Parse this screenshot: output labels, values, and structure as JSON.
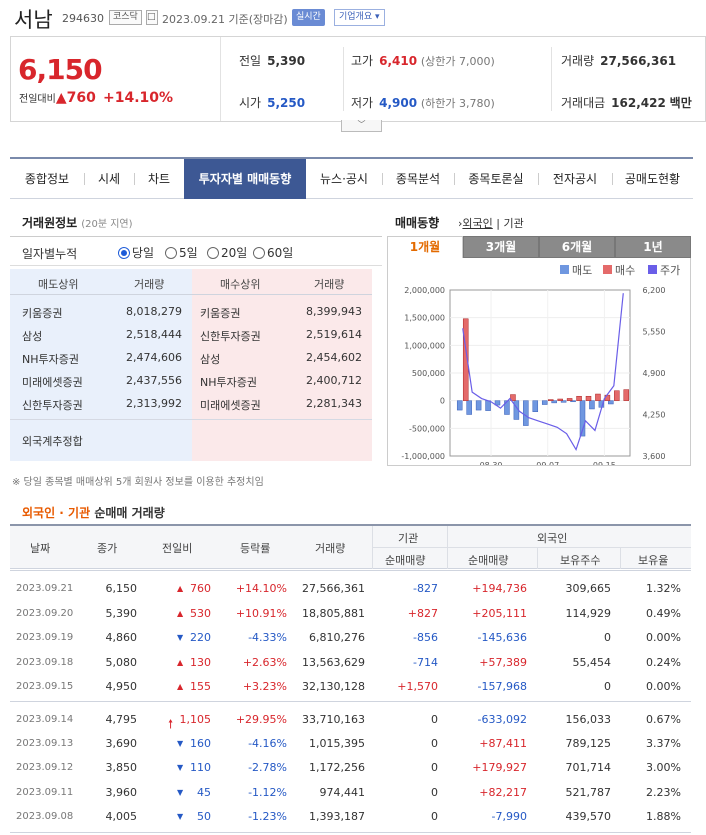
{
  "header": {
    "name": "서남",
    "code": "294630",
    "market": "코스닥",
    "date_text": "2023.09.21 기준(장마감)",
    "live_label": "실시간",
    "info_label": "기업개요"
  },
  "price": {
    "current": "6,150",
    "change_label": "전일대비",
    "change": "760",
    "change_pct": "+14.10%",
    "prev_label": "전일",
    "prev": "5,390",
    "open_label": "시가",
    "open": "5,250",
    "high_label": "고가",
    "high": "6,410",
    "upper_limit": "(상한가 7,000)",
    "low_label": "저가",
    "low": "4,900",
    "lower_limit": "(하한가 3,780)",
    "volume_label": "거래량",
    "volume": "27,566,361",
    "amount_label": "거래대금",
    "amount": "162,422",
    "amount_unit": "백만"
  },
  "tabs": [
    "종합정보",
    "시세",
    "차트",
    "투자자별 매매동향",
    "뉴스·공시",
    "종목분석",
    "종목토론실",
    "전자공시",
    "공매도현황"
  ],
  "trader": {
    "title": "거래원정보",
    "subtitle": "(20분 지연)",
    "period_label": "일자별누적",
    "periods": [
      "당일",
      "5일",
      "20일",
      "60일"
    ],
    "head": {
      "sell": "매도상위",
      "sell_vol": "거래량",
      "buy": "매수상위",
      "buy_vol": "거래량"
    },
    "rows": [
      {
        "sell": "키움증권",
        "sell_vol": "8,018,279",
        "buy": "키움증권",
        "buy_vol": "8,399,943"
      },
      {
        "sell": "삼성",
        "sell_vol": "2,518,444",
        "buy": "신한투자증권",
        "buy_vol": "2,519,614"
      },
      {
        "sell": "NH투자증권",
        "sell_vol": "2,474,606",
        "buy": "삼성",
        "buy_vol": "2,454,602"
      },
      {
        "sell": "미래에셋증권",
        "sell_vol": "2,437,556",
        "buy": "NH투자증권",
        "buy_vol": "2,400,712"
      },
      {
        "sell": "신한투자증권",
        "sell_vol": "2,313,992",
        "buy": "미래에셋증권",
        "buy_vol": "2,281,343"
      }
    ],
    "foreign_label": "외국계추정합",
    "note": "※ 당일 종목별 매매상위 5개 회원사 정보를 이용한 추정치임"
  },
  "trend": {
    "title": "매매동향",
    "link_foreign": "외국인",
    "link_inst": "기관",
    "periods": [
      "1개월",
      "3개월",
      "6개월",
      "1년"
    ]
  },
  "chart_data": {
    "type": "bar",
    "legend": [
      "매도",
      "매수",
      "주가"
    ],
    "legend_position": "top-right",
    "x_ticks": [
      "08.30",
      "09.07",
      "09.15"
    ],
    "y_left_ticks": [
      "2,000,000",
      "1,500,000",
      "1,000,000",
      "500,000",
      "0",
      "-500,000",
      "-1,000,000"
    ],
    "y_left_range": [
      -1000000,
      2000000
    ],
    "y_right_ticks": [
      "6,200",
      "5,550",
      "4,900",
      "4,250",
      "3,600"
    ],
    "y_right_range": [
      3600,
      6200
    ],
    "series": [
      {
        "name": "매도",
        "type": "bar",
        "values": [
          -170000,
          -250000,
          -170000,
          -180000,
          -80000,
          -250000,
          -340000,
          -450000,
          -200000,
          -70000,
          -40000,
          -30000,
          -20000,
          -640000,
          -150000,
          -120000,
          -60000,
          0
        ]
      },
      {
        "name": "매수",
        "type": "bar",
        "values": [
          1480000,
          0,
          0,
          0,
          0,
          110000,
          0,
          0,
          0,
          20000,
          30000,
          40000,
          80000,
          80000,
          120000,
          100000,
          180000,
          200000
        ]
      },
      {
        "name": "주가",
        "type": "line",
        "values": [
          5600,
          4600,
          4500,
          4450,
          4350,
          4500,
          4300,
          4200,
          4150,
          4100,
          4050,
          3950,
          3700,
          4150,
          4000,
          4500,
          4700,
          6150
        ]
      }
    ]
  },
  "net_trade": {
    "title_hl": "외국인 · 기관",
    "title_rest": "순매매 거래량",
    "head": {
      "date": "날짜",
      "close": "종가",
      "diff": "전일비",
      "rate": "등락률",
      "volume": "거래량",
      "inst": "기관",
      "inst_net": "순매매량",
      "foreign": "외국인",
      "foreign_net": "순매매량",
      "foreign_hold": "보유주수",
      "foreign_ratio": "보유율"
    },
    "rows": [
      {
        "date": "2023.09.21",
        "close": "6,150",
        "dir": "up",
        "diff": "760",
        "rate": "+14.10%",
        "volume": "27,566,361",
        "inst": "-827",
        "foreign": "+194,736",
        "hold": "309,665",
        "ratio": "1.32%"
      },
      {
        "date": "2023.09.20",
        "close": "5,390",
        "dir": "up",
        "diff": "530",
        "rate": "+10.91%",
        "volume": "18,805,881",
        "inst": "+827",
        "foreign": "+205,111",
        "hold": "114,929",
        "ratio": "0.49%"
      },
      {
        "date": "2023.09.19",
        "close": "4,860",
        "dir": "down",
        "diff": "220",
        "rate": "-4.33%",
        "volume": "6,810,276",
        "inst": "-856",
        "foreign": "-145,636",
        "hold": "0",
        "ratio": "0.00%"
      },
      {
        "date": "2023.09.18",
        "close": "5,080",
        "dir": "up",
        "diff": "130",
        "rate": "+2.63%",
        "volume": "13,563,629",
        "inst": "-714",
        "foreign": "+57,389",
        "hold": "55,454",
        "ratio": "0.24%"
      },
      {
        "date": "2023.09.15",
        "close": "4,950",
        "dir": "up",
        "diff": "155",
        "rate": "+3.23%",
        "volume": "32,130,128",
        "inst": "+1,570",
        "foreign": "-157,968",
        "hold": "0",
        "ratio": "0.00%"
      },
      {
        "date": "2023.09.14",
        "close": "4,795",
        "dir": "limit",
        "diff": "1,105",
        "rate": "+29.95%",
        "volume": "33,710,163",
        "inst": "0",
        "foreign": "-633,092",
        "hold": "156,033",
        "ratio": "0.67%"
      },
      {
        "date": "2023.09.13",
        "close": "3,690",
        "dir": "down",
        "diff": "160",
        "rate": "-4.16%",
        "volume": "1,015,395",
        "inst": "0",
        "foreign": "+87,411",
        "hold": "789,125",
        "ratio": "3.37%"
      },
      {
        "date": "2023.09.12",
        "close": "3,850",
        "dir": "down",
        "diff": "110",
        "rate": "-2.78%",
        "volume": "1,172,256",
        "inst": "0",
        "foreign": "+179,927",
        "hold": "701,714",
        "ratio": "3.00%"
      },
      {
        "date": "2023.09.11",
        "close": "3,960",
        "dir": "down",
        "diff": "45",
        "rate": "-1.12%",
        "volume": "974,441",
        "inst": "0",
        "foreign": "+82,217",
        "hold": "521,787",
        "ratio": "2.23%"
      },
      {
        "date": "2023.09.08",
        "close": "4,005",
        "dir": "down",
        "diff": "50",
        "rate": "-1.23%",
        "volume": "1,393,187",
        "inst": "0",
        "foreign": "-7,990",
        "hold": "439,570",
        "ratio": "1.88%"
      }
    ]
  },
  "colors": {
    "up": "#d8262c",
    "down": "#2559c5",
    "sell_bar": "#6f97e0",
    "buy_bar": "#e46a6a",
    "price_line": "#6a5ee8",
    "tab_active": "#3d5894"
  }
}
